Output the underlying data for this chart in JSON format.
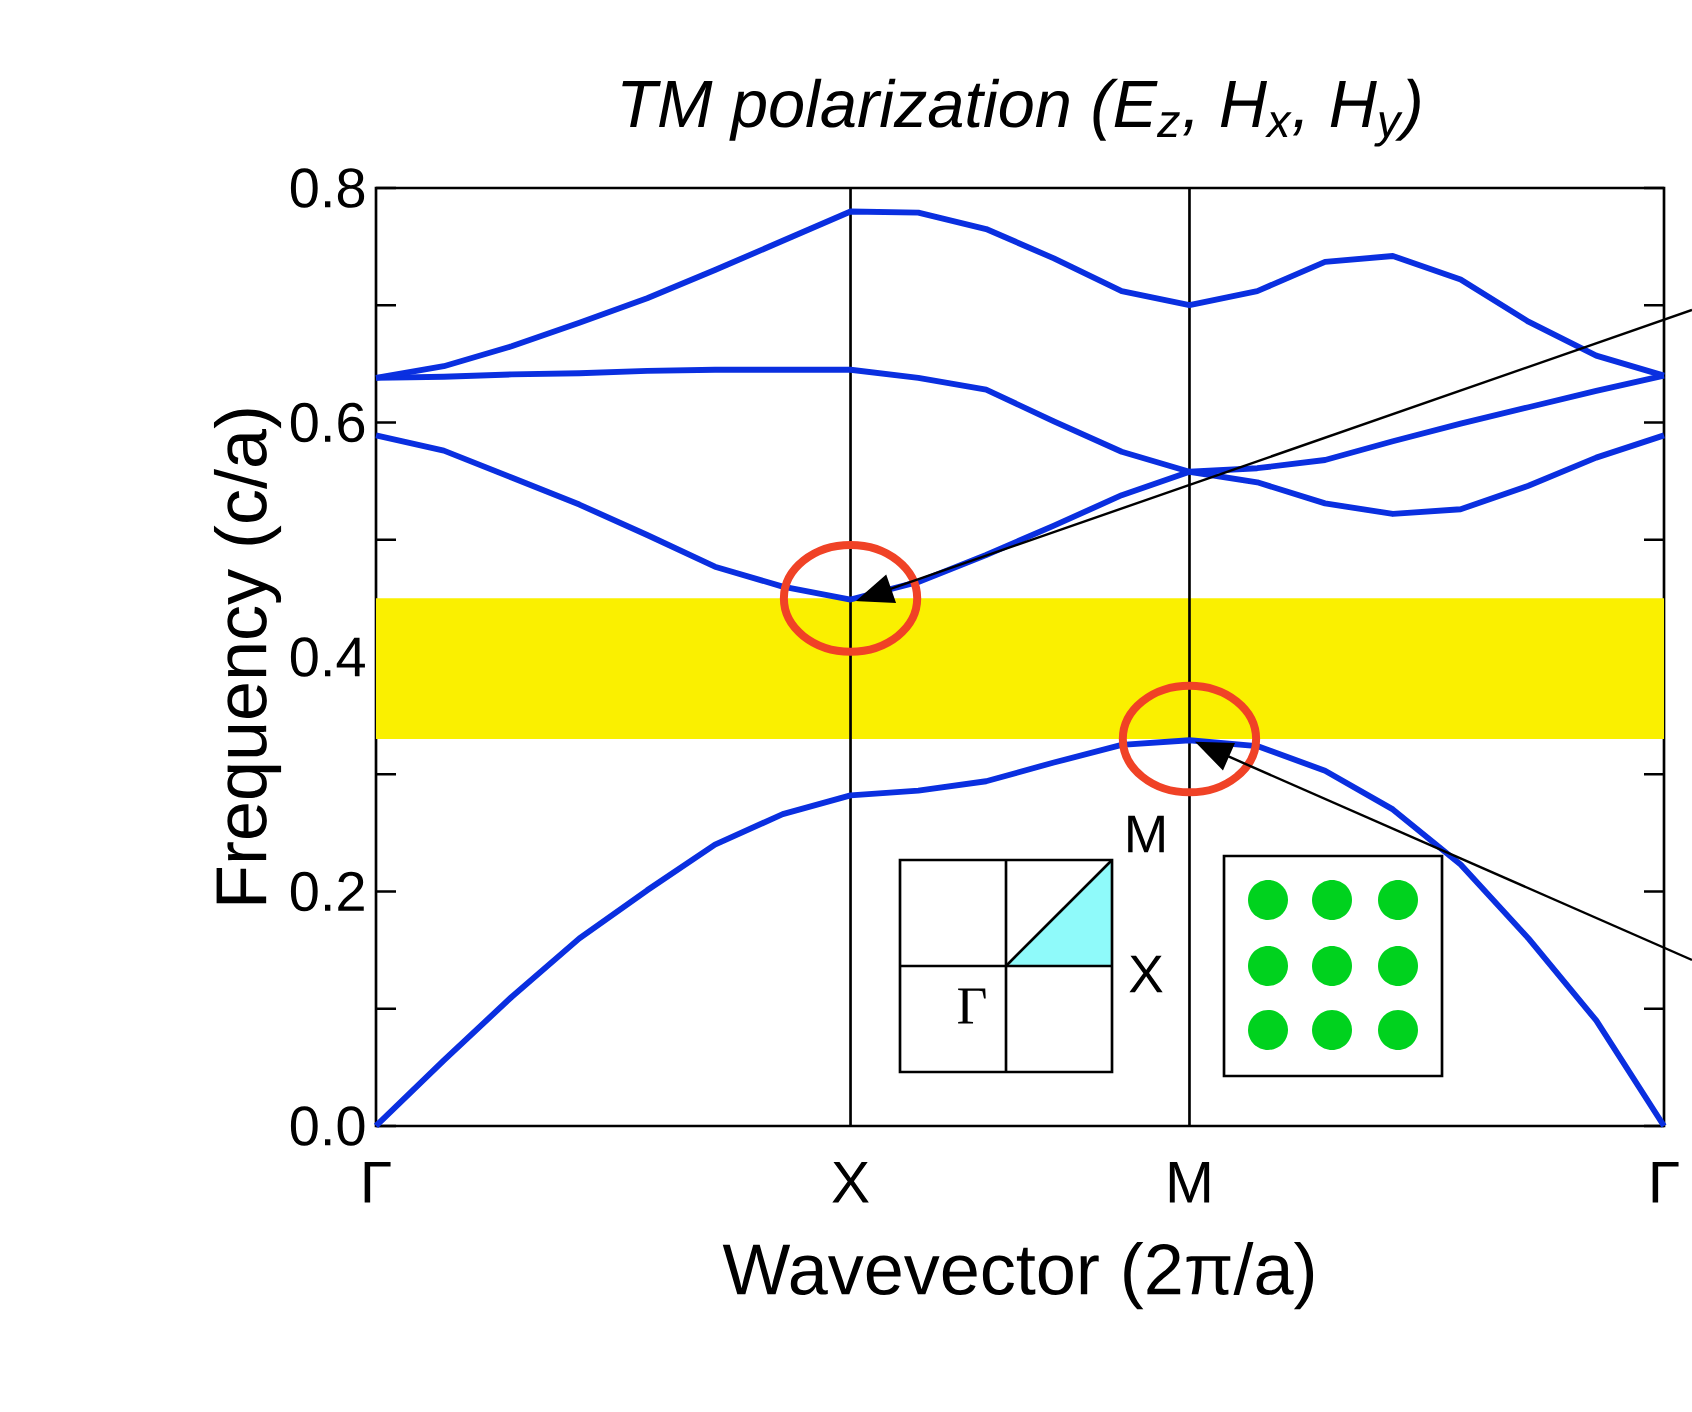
{
  "chart_data": {
    "type": "line",
    "title": "TM polarization (E$_{z}$, H$_{x}$, H$_{y}$)",
    "xlabel": "Wavevector (2π/a)",
    "ylabel": "Frequency (c/a)",
    "categories": [
      "Γ",
      null,
      null,
      null,
      null,
      null,
      null,
      "X",
      null,
      null,
      null,
      null,
      "M",
      null,
      null,
      null,
      null,
      null,
      null,
      "Γ"
    ],
    "ylim": [
      0,
      0.8
    ],
    "yticks": [
      {
        "value": 0,
        "label": "0.0"
      },
      {
        "value": 0.1,
        "label": null
      },
      0.2,
      {
        "value": 0.3,
        "label": null
      },
      0.4,
      {
        "value": 0.5,
        "label": null
      },
      0.6,
      {
        "value": 0.7,
        "label": null
      },
      0.8
    ],
    "series": [
      {
        "color": "#0a2fe0",
        "values": [
          0,
          0.056,
          0.11,
          0.16,
          0.201,
          0.24,
          0.266,
          0.282,
          0.286,
          0.294,
          0.31,
          0.325,
          0.329,
          0.324,
          0.303,
          0.27,
          0.223,
          0.16,
          0.09,
          0
        ]
      },
      {
        "color": "#0a2fe0",
        "values": [
          0.589,
          0.576,
          0.553,
          0.53,
          0.504,
          0.477,
          0.46,
          0.449,
          0.464,
          0.487,
          0.512,
          0.538,
          0.558,
          0.561,
          0.568,
          0.584,
          0.599,
          0.613,
          0.627,
          0.64
        ]
      },
      {
        "color": "#0a2fe0",
        "values": [
          0.638,
          0.639,
          0.641,
          0.642,
          0.644,
          0.645,
          0.645,
          0.645,
          0.638,
          0.628,
          0.601,
          0.575,
          0.558,
          0.549,
          0.531,
          0.522,
          0.526,
          0.546,
          0.57,
          0.589
        ]
      },
      {
        "color": "#0a2fe0",
        "values": [
          0.638,
          0.648,
          0.665,
          0.685,
          0.706,
          0.73,
          0.755,
          0.78,
          0.779,
          0.765,
          0.74,
          0.712,
          0.7,
          0.712,
          0.737,
          0.742,
          0.722,
          0.686,
          0.657,
          0.64
        ]
      }
    ],
    "bands": [
      {
        "axis": "y",
        "from": 0.33,
        "to": 0.45,
        "color": "#faf000"
      }
    ],
    "ref_lines": [
      {
        "axis": "x",
        "value": "X",
        "color": "#000000"
      },
      {
        "axis": "x",
        "value": "M",
        "color": "#000000"
      }
    ],
    "annotations": [
      "M",
      "X",
      "Γ"
    ]
  }
}
